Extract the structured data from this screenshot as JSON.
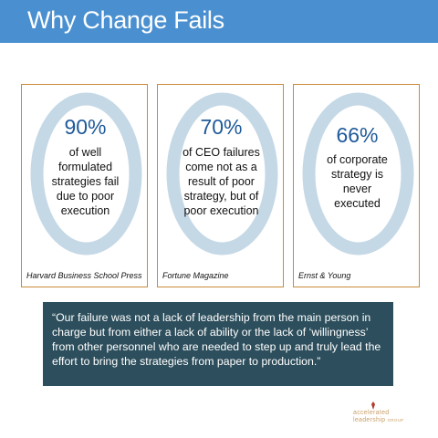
{
  "slide": {
    "title": "Why Change Fails",
    "header_color": "#4a90d0"
  },
  "cards": [
    {
      "stat": "90%",
      "description_lines": [
        "of well",
        "formulated",
        "strategies fail",
        "due to poor",
        "execution"
      ],
      "source": "Harvard Business School Press",
      "ring_fill_percent": 90
    },
    {
      "stat": "70%",
      "description_lines": [
        "of CEO failures",
        "come not as a",
        "result of poor",
        "strategy, but of",
        "poor execution"
      ],
      "source": "Fortune Magazine",
      "ring_fill_percent": 70
    },
    {
      "stat": "66%",
      "description_lines": [
        "of corporate",
        "strategy is",
        "never",
        "executed"
      ],
      "source": "Ernst & Young",
      "ring_fill_percent": 66
    }
  ],
  "quote": {
    "text": "“Our failure was not a lack of leadership from the main person in charge but from either a lack of ability or the lack of ‘willingness’ from other personnel who are needed to step up and truly lead the effort to bring the strategies from paper to production.”",
    "background_color": "#2d4e5c"
  },
  "logo": {
    "line1": "accelerated",
    "line2": "leadership",
    "line2_suffix": "GROUP",
    "icon": "pen-nib-icon",
    "color": "#c9a06a"
  },
  "colors": {
    "ring": "#c5d8e6",
    "card_border": "#c98a3a",
    "stat_text": "#1f5a9a"
  }
}
